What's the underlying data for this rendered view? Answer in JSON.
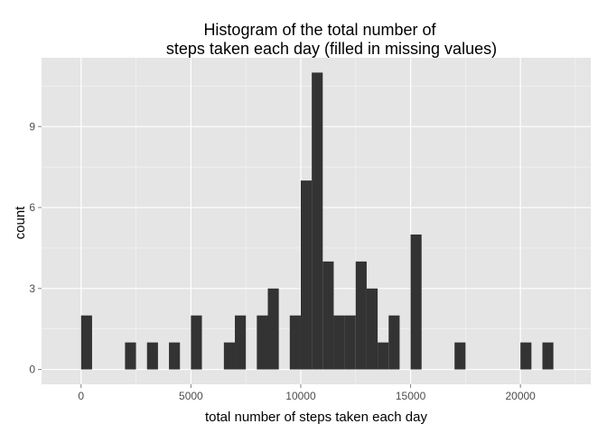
{
  "chart_data": {
    "type": "bar",
    "title_lines": [
      "Histogram of the total number of",
      "steps taken each day (filled in missing values)"
    ],
    "xlabel": "total number of steps taken each day",
    "ylabel": "count",
    "x_ticks": [
      0,
      5000,
      10000,
      15000,
      20000
    ],
    "y_ticks": [
      0,
      3,
      6,
      9
    ],
    "xlim": [
      -1800,
      23200
    ],
    "ylim": [
      -0.55,
      11.55
    ],
    "binwidth": 500,
    "grid": true,
    "legend": "none",
    "colors": {
      "panel": "#e5e5e5",
      "grid": "#ffffff",
      "bar": "#333333",
      "tick": "#7f7f7f"
    },
    "bins": [
      {
        "start": 0,
        "end": 500,
        "count": 2
      },
      {
        "start": 2000,
        "end": 2500,
        "count": 1
      },
      {
        "start": 3000,
        "end": 3500,
        "count": 1
      },
      {
        "start": 4000,
        "end": 4500,
        "count": 1
      },
      {
        "start": 5000,
        "end": 5500,
        "count": 2
      },
      {
        "start": 6500,
        "end": 7000,
        "count": 1
      },
      {
        "start": 7000,
        "end": 7500,
        "count": 2
      },
      {
        "start": 8000,
        "end": 8500,
        "count": 2
      },
      {
        "start": 8500,
        "end": 9000,
        "count": 3
      },
      {
        "start": 9500,
        "end": 10000,
        "count": 2
      },
      {
        "start": 10000,
        "end": 10500,
        "count": 7
      },
      {
        "start": 10500,
        "end": 11000,
        "count": 11
      },
      {
        "start": 11000,
        "end": 11500,
        "count": 4
      },
      {
        "start": 11500,
        "end": 12000,
        "count": 2
      },
      {
        "start": 12000,
        "end": 12500,
        "count": 2
      },
      {
        "start": 12500,
        "end": 13000,
        "count": 4
      },
      {
        "start": 13000,
        "end": 13500,
        "count": 3
      },
      {
        "start": 13500,
        "end": 14000,
        "count": 1
      },
      {
        "start": 14000,
        "end": 14500,
        "count": 2
      },
      {
        "start": 15000,
        "end": 15500,
        "count": 5
      },
      {
        "start": 17000,
        "end": 17500,
        "count": 1
      },
      {
        "start": 20000,
        "end": 20500,
        "count": 1
      },
      {
        "start": 21000,
        "end": 21500,
        "count": 1
      }
    ]
  }
}
